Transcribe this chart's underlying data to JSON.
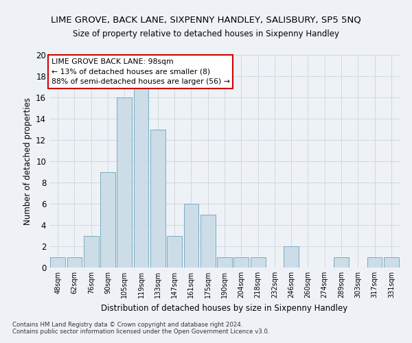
{
  "title": "LIME GROVE, BACK LANE, SIXPENNY HANDLEY, SALISBURY, SP5 5NQ",
  "subtitle": "Size of property relative to detached houses in Sixpenny Handley",
  "xlabel": "Distribution of detached houses by size in Sixpenny Handley",
  "ylabel": "Number of detached properties",
  "categories": [
    "48sqm",
    "62sqm",
    "76sqm",
    "90sqm",
    "105sqm",
    "119sqm",
    "133sqm",
    "147sqm",
    "161sqm",
    "175sqm",
    "190sqm",
    "204sqm",
    "218sqm",
    "232sqm",
    "246sqm",
    "260sqm",
    "274sqm",
    "289sqm",
    "303sqm",
    "317sqm",
    "331sqm"
  ],
  "values": [
    1,
    1,
    3,
    9,
    16,
    17,
    13,
    3,
    6,
    5,
    1,
    1,
    1,
    0,
    2,
    0,
    0,
    1,
    0,
    1,
    1
  ],
  "bar_color": "#ccdde8",
  "bar_edge_color": "#7aaabf",
  "grid_color": "#d0d8e0",
  "background_color": "#eef2f7",
  "annotation_text": "LIME GROVE BACK LANE: 98sqm\n← 13% of detached houses are smaller (8)\n88% of semi-detached houses are larger (56) →",
  "annotation_box_color": "#ffffff",
  "annotation_box_edge": "#cc0000",
  "ylim": [
    0,
    20
  ],
  "yticks": [
    0,
    2,
    4,
    6,
    8,
    10,
    12,
    14,
    16,
    18,
    20
  ],
  "footer1": "Contains HM Land Registry data © Crown copyright and database right 2024.",
  "footer2": "Contains public sector information licensed under the Open Government Licence v3.0."
}
